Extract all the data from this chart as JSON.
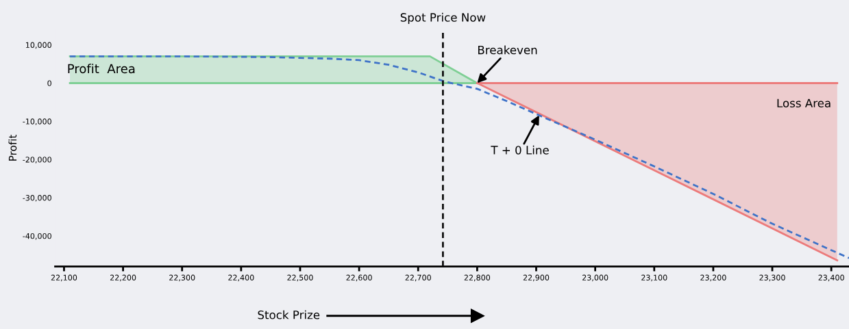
{
  "chart_data": {
    "type": "line",
    "xlabel": "Stock Prize",
    "ylabel": "Profit",
    "xlim": [
      22085,
      23430
    ],
    "ylim": [
      -48000,
      14000
    ],
    "xticks": [
      {
        "value": 22100,
        "label": "22,100"
      },
      {
        "value": 22200,
        "label": "22,200"
      },
      {
        "value": 22300,
        "label": "22,300"
      },
      {
        "value": 22400,
        "label": "22,400"
      },
      {
        "value": 22500,
        "label": "22,500"
      },
      {
        "value": 22600,
        "label": "22,600"
      },
      {
        "value": 22700,
        "label": "22,700"
      },
      {
        "value": 22800,
        "label": "22,800"
      },
      {
        "value": 22900,
        "label": "22,900"
      },
      {
        "value": 23000,
        "label": "23,000"
      },
      {
        "value": 23100,
        "label": "23,100"
      },
      {
        "value": 23200,
        "label": "23,200"
      },
      {
        "value": 23300,
        "label": "23,300"
      },
      {
        "value": 23400,
        "label": "23,400"
      }
    ],
    "yticks": [
      {
        "value": 10000,
        "label": "10,000"
      },
      0,
      {
        "value": -10000,
        "label": "-10,000"
      },
      {
        "value": -20000,
        "label": "-20,000"
      },
      {
        "value": -30000,
        "label": "-30,000"
      },
      {
        "value": -40000,
        "label": "-40,000"
      }
    ],
    "series": [
      {
        "type": "area",
        "color": "#7fcf95",
        "x": [
          22110,
          22720,
          22800
        ],
        "values": [
          7000,
          7000,
          0
        ]
      },
      {
        "type": "area",
        "color": "#ec7b7b",
        "x": [
          22800,
          23410
        ],
        "values": [
          0,
          -46400
        ]
      },
      {
        "type": "line",
        "color": "#7fcf95",
        "x": [
          22110,
          22800
        ],
        "values": [
          0,
          0
        ]
      },
      {
        "type": "line",
        "color": "#ec7b7b",
        "x": [
          22800,
          23410
        ],
        "values": [
          0,
          0
        ]
      },
      {
        "color": "#3f73c8",
        "line_style": "dashed",
        "x": [
          22110,
          22300,
          22450,
          22550,
          22600,
          22650,
          22700,
          22745,
          22800,
          22850,
          22900,
          23000,
          23100,
          23200,
          23300,
          23430
        ],
        "values": [
          7000,
          7000,
          6800,
          6400,
          6000,
          4800,
          2800,
          400,
          -1500,
          -4700,
          -8100,
          -14800,
          -21800,
          -29000,
          -36800,
          -45800
        ]
      }
    ],
    "ref_lines": [
      {
        "axis": "x",
        "value": 22742,
        "label": "Spot Price Now",
        "color": "#111111",
        "line_style": "dashed"
      }
    ],
    "annotations": [
      "Profit  Area",
      "Loss Area",
      {
        "text": "Breakeven",
        "x": 22800,
        "y": 0
      },
      {
        "text": "T + 0 Line",
        "x": 22905,
        "y": -8400
      }
    ],
    "grid": false,
    "legend": false
  }
}
